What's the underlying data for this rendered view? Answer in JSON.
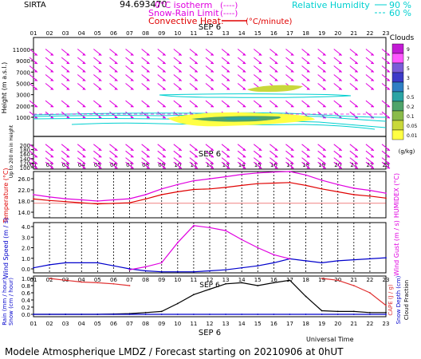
{
  "header": {
    "station": "SIRTA",
    "coords": "94.693470",
    "legend_isotherm": "0°C isotherm",
    "legend_isotherm_mark": "(----)",
    "legend_snowrain": "Snow-Rain Limit",
    "legend_snowrain_mark": "(----)",
    "legend_convective": "Convective Heat.",
    "legend_convective_mark": "(°C/minute)",
    "legend_rh": "Relative Humidity",
    "legend_rh90": "90 %",
    "legend_rh60": "60 %",
    "date_label": "SEP  6"
  },
  "footer": {
    "title": "Modele Atmospherique LMDZ / Forecast starting on 20210906 at 0hUT",
    "xlabel": "Universal Time"
  },
  "chart_data": [
    {
      "type": "heatmap",
      "id": "clouds",
      "hours": [
        "01",
        "02",
        "03",
        "04",
        "05",
        "06",
        "07",
        "08",
        "09",
        "10",
        "11",
        "12",
        "13",
        "14",
        "15",
        "16",
        "17",
        "18",
        "19",
        "20",
        "21",
        "22",
        "23"
      ],
      "ylabel": "Height  (m a.s.l.)",
      "ylabel2": "Up to 200 m in Height",
      "y_ticks_top": [
        "11000",
        "9000",
        "7000",
        "5000",
        "3000",
        "2000",
        "1000"
      ],
      "y_ticks_bottom": [
        "200",
        "180",
        "160",
        "140",
        "120",
        "100"
      ],
      "colorbar_title": "Clouds",
      "colorbar_unit": "(g/kg)",
      "colorbar_ticks": [
        "9",
        "7",
        "5",
        "3",
        "1",
        "0.5",
        "0.2",
        "0.1",
        "0.05",
        "0.01"
      ],
      "colorbar_colors": [
        "#c21bd4",
        "#ff57ff",
        "#7a5cd8",
        "#3c3bc8",
        "#2e7fc4",
        "#2ba4a4",
        "#4fa46a",
        "#8abb4a",
        "#c9d83a",
        "#ffff44"
      ],
      "wind_rows_m": [
        10500,
        9000,
        7500,
        6000,
        4500,
        2200,
        1200
      ],
      "wind_rows_low_m": [
        190,
        160,
        130,
        110
      ],
      "wind_direction": "from north-west"
    },
    {
      "type": "line",
      "id": "temperature",
      "ylabel_left": "Temperature (°C)",
      "ylabel_right": "HUMIDEX (°C)",
      "y_ticks": [
        "26.0",
        "22.0",
        "18.0",
        "14.0"
      ],
      "ylim": [
        14,
        30
      ],
      "x": [
        1,
        2,
        3,
        4,
        5,
        6,
        7,
        8,
        9,
        10,
        11,
        12,
        13,
        14,
        15,
        16,
        17,
        18,
        19,
        20,
        21,
        22,
        23
      ],
      "series": [
        {
          "name": "Temperature",
          "color": "#e00000",
          "values": [
            20.5,
            20.0,
            19.6,
            19.2,
            18.8,
            19.0,
            19.2,
            20.5,
            22.0,
            23.0,
            23.8,
            24.0,
            24.5,
            25.2,
            25.8,
            26.0,
            26.2,
            25.2,
            24.0,
            23.0,
            22.0,
            21.5,
            20.8
          ]
        },
        {
          "name": "HUMIDEX",
          "color": "#e000e0",
          "values": [
            22.0,
            21.2,
            20.6,
            20.2,
            19.8,
            20.2,
            20.6,
            22.0,
            24.0,
            25.5,
            26.8,
            27.5,
            28.2,
            29.0,
            29.5,
            29.8,
            30.0,
            28.8,
            27.0,
            25.5,
            24.2,
            23.5,
            22.5
          ]
        }
      ],
      "reference_line": {
        "value": 19.0,
        "color": "#e00000"
      }
    },
    {
      "type": "line",
      "id": "wind",
      "ylabel_left": "Wind Speed (m / s)",
      "ylabel_right": "Wind Gust (m / s)",
      "y_ticks": [
        "4.0",
        "3.0",
        "2.0",
        "1.0",
        "0.0"
      ],
      "ylim": [
        0,
        5
      ],
      "x": [
        1,
        2,
        3,
        4,
        5,
        6,
        7,
        8,
        9,
        10,
        11,
        12,
        13,
        14,
        15,
        16,
        17,
        18,
        19,
        20,
        21,
        22,
        23
      ],
      "series": [
        {
          "name": "Wind Speed",
          "color": "#0000cc",
          "values": [
            0.5,
            0.8,
            1.0,
            1.0,
            1.0,
            0.7,
            0.4,
            0.2,
            0.1,
            0.1,
            0.1,
            0.2,
            0.3,
            0.5,
            0.7,
            1.0,
            1.4,
            1.2,
            1.0,
            1.2,
            1.3,
            1.4,
            1.5
          ]
        },
        {
          "name": "Wind Gust",
          "color": "#e000e0",
          "values": [
            null,
            null,
            null,
            null,
            null,
            null,
            0.3,
            0.6,
            1.0,
            3.0,
            4.7,
            4.5,
            4.2,
            3.3,
            2.5,
            1.8,
            1.4,
            null,
            null,
            null,
            null,
            null,
            null
          ]
        }
      ]
    },
    {
      "type": "line",
      "id": "precip",
      "ylabel_left": "Rain (mm / hour)",
      "ylabel_left2": "Snow (cm / hour)",
      "ylabel_right": "CAPE (J / g)",
      "ylabel_right2": "Snow Depth (cm)",
      "ylabel_right3": "Cloud Fraction",
      "y_ticks": [
        "1.0",
        "0.8",
        "0.6",
        "0.4",
        "0.2",
        "0.0"
      ],
      "ylim": [
        0,
        1
      ],
      "x": [
        1,
        2,
        3,
        4,
        5,
        6,
        7,
        8,
        9,
        10,
        11,
        12,
        13,
        14,
        15,
        16,
        17,
        18,
        19,
        20,
        21,
        22,
        23
      ],
      "series": [
        {
          "name": "CAPE",
          "color": "#e03030",
          "values": [
            null,
            1.0,
            0.95,
            0.9,
            0.88,
            0.85,
            0.8,
            null,
            null,
            null,
            null,
            null,
            null,
            null,
            null,
            null,
            null,
            null,
            1.0,
            0.95,
            0.8,
            0.6,
            0.25
          ]
        },
        {
          "name": "Cloud Fraction",
          "color": "#000000",
          "values": [
            0.0,
            0.0,
            0.0,
            0.0,
            0.0,
            0.01,
            0.02,
            0.05,
            0.08,
            0.3,
            0.55,
            0.7,
            0.85,
            0.88,
            0.8,
            0.88,
            0.95,
            0.5,
            0.1,
            0.08,
            0.08,
            0.05,
            0.05
          ]
        },
        {
          "name": "Rain",
          "color": "#0000cc",
          "values": [
            0,
            0,
            0,
            0,
            0,
            0,
            0,
            0,
            0,
            0,
            0,
            0,
            0,
            0,
            0,
            0,
            0,
            0,
            0,
            0,
            0,
            0,
            0
          ]
        }
      ]
    }
  ]
}
